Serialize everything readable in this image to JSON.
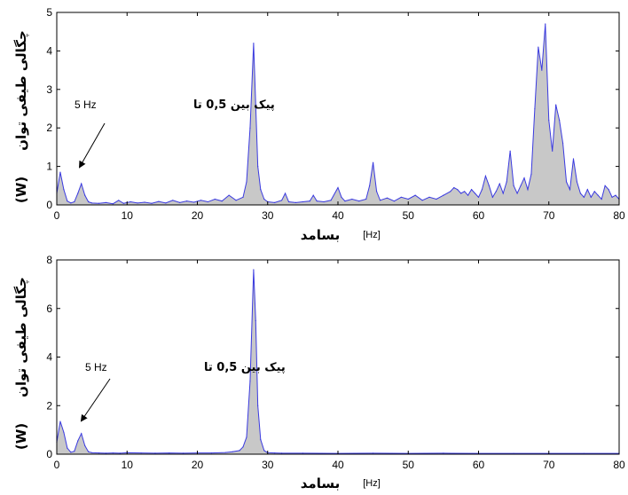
{
  "colors": {
    "line": "#3a3ae0",
    "fill": "#c8c8c8",
    "axis": "#000000",
    "background": "#ffffff"
  },
  "chart_data": [
    {
      "type": "area",
      "xlabel": "بسامد",
      "xunit": "[Hz]",
      "ylabel": "چگالی طیفی توان",
      "yunit": "(W)",
      "annotation": "پیک بین 0,5 تا 5 Hz",
      "annotation_parts": {
        "text_fa": "پیک بین 0,5 تا",
        "hz": "5 Hz"
      },
      "xlim": [
        0,
        80
      ],
      "ylim": [
        0,
        5
      ],
      "xticks": [
        0,
        10,
        20,
        30,
        40,
        50,
        60,
        70,
        80
      ],
      "yticks": [
        0,
        1,
        2,
        3,
        4,
        5
      ],
      "grid": false,
      "x": [
        0,
        0.5,
        1.0,
        1.5,
        2.0,
        2.5,
        3.0,
        3.5,
        4.0,
        4.5,
        5.0,
        6.0,
        7.0,
        8.0,
        8.8,
        9.5,
        10.5,
        11.5,
        12.5,
        13.5,
        14.5,
        15.5,
        16.5,
        17.5,
        18.5,
        19.5,
        20.5,
        21.5,
        22.5,
        23.5,
        24.5,
        25.5,
        26.5,
        27.0,
        27.5,
        28.0,
        28.3,
        28.6,
        29.0,
        29.5,
        30.0,
        31.0,
        32.0,
        32.5,
        33.0,
        34.0,
        35.0,
        36.0,
        36.5,
        37.0,
        38.0,
        39.0,
        40.0,
        40.5,
        41.0,
        42.0,
        43.0,
        44.0,
        44.5,
        45.0,
        45.5,
        46.0,
        47.0,
        48.0,
        49.0,
        50.0,
        51.0,
        52.0,
        53.0,
        54.0,
        55.0,
        56.0,
        56.5,
        57.0,
        57.5,
        58.0,
        58.5,
        59.0,
        59.5,
        60.0,
        60.5,
        61.0,
        61.5,
        62.0,
        62.5,
        63.0,
        63.5,
        64.0,
        64.5,
        65.0,
        65.5,
        66.0,
        66.5,
        67.0,
        67.5,
        68.0,
        68.5,
        69.0,
        69.5,
        70.0,
        70.5,
        71.0,
        71.5,
        72.0,
        72.5,
        73.0,
        73.5,
        74.0,
        74.5,
        75.0,
        75.5,
        76.0,
        76.5,
        77.0,
        77.5,
        78.0,
        78.5,
        79.0,
        79.5,
        80.0
      ],
      "y": [
        0.3,
        0.85,
        0.4,
        0.1,
        0.05,
        0.08,
        0.3,
        0.55,
        0.25,
        0.08,
        0.05,
        0.04,
        0.06,
        0.03,
        0.12,
        0.04,
        0.08,
        0.05,
        0.07,
        0.04,
        0.09,
        0.05,
        0.12,
        0.06,
        0.1,
        0.07,
        0.12,
        0.08,
        0.15,
        0.1,
        0.25,
        0.12,
        0.2,
        0.6,
        2.0,
        4.2,
        2.6,
        1.0,
        0.4,
        0.15,
        0.08,
        0.06,
        0.12,
        0.3,
        0.08,
        0.06,
        0.08,
        0.1,
        0.25,
        0.1,
        0.08,
        0.12,
        0.45,
        0.2,
        0.1,
        0.15,
        0.1,
        0.15,
        0.5,
        1.1,
        0.35,
        0.12,
        0.18,
        0.1,
        0.2,
        0.15,
        0.25,
        0.12,
        0.2,
        0.15,
        0.25,
        0.35,
        0.45,
        0.4,
        0.3,
        0.35,
        0.25,
        0.4,
        0.3,
        0.2,
        0.4,
        0.75,
        0.5,
        0.2,
        0.35,
        0.55,
        0.3,
        0.6,
        1.4,
        0.5,
        0.3,
        0.5,
        0.7,
        0.4,
        0.8,
        2.5,
        4.1,
        3.5,
        4.7,
        2.2,
        1.4,
        2.6,
        2.2,
        1.6,
        0.6,
        0.4,
        1.2,
        0.6,
        0.3,
        0.2,
        0.4,
        0.2,
        0.35,
        0.25,
        0.15,
        0.5,
        0.4,
        0.2,
        0.25,
        0.15
      ]
    },
    {
      "type": "area",
      "xlabel": "بسامد",
      "xunit": "[Hz]",
      "ylabel": "چگالی طیفی توان",
      "yunit": "(W)",
      "annotation": "پیک بین 0,5 تا 5 Hz",
      "annotation_parts": {
        "text_fa": "پیک بین 0,5 تا",
        "hz": "5 Hz"
      },
      "xlim": [
        0,
        80
      ],
      "ylim": [
        0,
        8
      ],
      "xticks": [
        0,
        10,
        20,
        30,
        40,
        50,
        60,
        70,
        80
      ],
      "yticks": [
        0,
        2,
        4,
        6,
        8
      ],
      "grid": false,
      "x": [
        0,
        0.5,
        1.0,
        1.5,
        2.0,
        2.5,
        3.0,
        3.5,
        4.0,
        4.5,
        5.0,
        6.0,
        7.0,
        8.0,
        9.0,
        10.0,
        12.0,
        14.0,
        16.0,
        18.0,
        20.0,
        22.0,
        24.0,
        25.0,
        26.0,
        26.5,
        27.0,
        27.5,
        28.0,
        28.3,
        28.6,
        29.0,
        29.5,
        30.0,
        31.0,
        32.0,
        35.0,
        40.0,
        45.0,
        50.0,
        55.0,
        60.0,
        65.0,
        70.0,
        75.0,
        80.0
      ],
      "y": [
        0.5,
        1.35,
        0.9,
        0.25,
        0.08,
        0.12,
        0.55,
        0.85,
        0.35,
        0.1,
        0.06,
        0.05,
        0.04,
        0.05,
        0.04,
        0.06,
        0.05,
        0.04,
        0.05,
        0.04,
        0.05,
        0.05,
        0.07,
        0.1,
        0.15,
        0.3,
        0.7,
        3.0,
        7.6,
        5.5,
        2.0,
        0.6,
        0.15,
        0.06,
        0.05,
        0.04,
        0.04,
        0.03,
        0.04,
        0.03,
        0.04,
        0.03,
        0.03,
        0.03,
        0.03,
        0.03
      ]
    }
  ]
}
